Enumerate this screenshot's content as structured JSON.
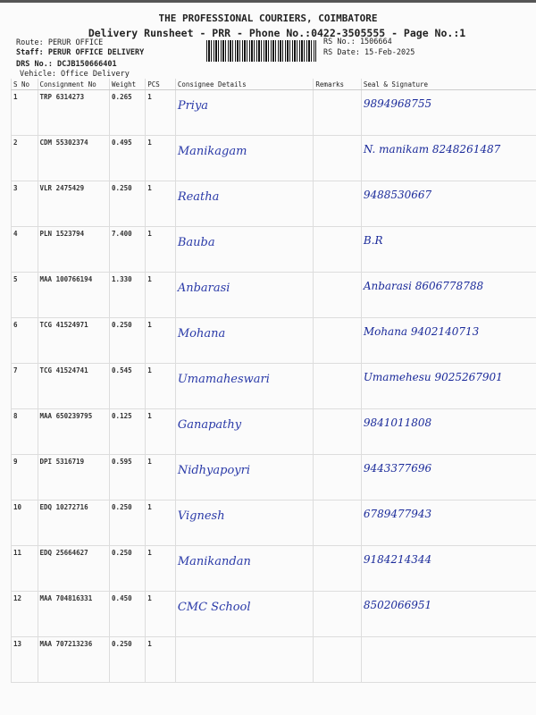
{
  "header": {
    "title": "THE PROFESSIONAL COURIERS, COIMBATORE",
    "subtitle": "Delivery Runsheet - PRR - Phone No.:0422-3505555 - Page No.:1",
    "route": "Route: PERUR OFFICE",
    "staff": "Staff: PERUR OFFICE DELIVERY",
    "drs": "DRS No.: DCJB150666401",
    "vehicle": "Vehicle: Office Delivery",
    "rs_no": "RS No.: 1506664",
    "rs_date": "RS Date: 15-Feb-2025"
  },
  "table": {
    "columns": [
      "S No",
      "Consignment No",
      "Weight",
      "PCS",
      "Consignee Details",
      "Remarks",
      "Seal & Signature"
    ],
    "rows": [
      {
        "sno": "1",
        "cn": "TRP 6314273",
        "wt": "0.265",
        "pcs": "1",
        "consignee": "Priya",
        "sig": "9894968755"
      },
      {
        "sno": "2",
        "cn": "CDM 55302374",
        "wt": "0.495",
        "pcs": "1",
        "consignee": "Manikagam",
        "sig": "N. manikam 8248261487"
      },
      {
        "sno": "3",
        "cn": "VLR 2475429",
        "wt": "0.250",
        "pcs": "1",
        "consignee": "Reatha",
        "sig": "9488530667"
      },
      {
        "sno": "4",
        "cn": "PLN 1523794",
        "wt": "7.400",
        "pcs": "1",
        "consignee": "Bauba",
        "sig": "B.R"
      },
      {
        "sno": "5",
        "cn": "MAA 100766194",
        "wt": "1.330",
        "pcs": "1",
        "consignee": "Anbarasi",
        "sig": "Anbarasi 8606778788"
      },
      {
        "sno": "6",
        "cn": "TCG 41524971",
        "wt": "0.250",
        "pcs": "1",
        "consignee": "Mohana",
        "sig": "Mohana 9402140713"
      },
      {
        "sno": "7",
        "cn": "TCG 41524741",
        "wt": "0.545",
        "pcs": "1",
        "consignee": "Umamaheswari",
        "sig": "Umamehesu 9025267901"
      },
      {
        "sno": "8",
        "cn": "MAA 650239795",
        "wt": "0.125",
        "pcs": "1",
        "consignee": "Ganapathy",
        "sig": "9841011808"
      },
      {
        "sno": "9",
        "cn": "DPI 5316719",
        "wt": "0.595",
        "pcs": "1",
        "consignee": "Nidhyapoyri",
        "sig": "9443377696"
      },
      {
        "sno": "10",
        "cn": "EDQ 10272716",
        "wt": "0.250",
        "pcs": "1",
        "consignee": "Vignesh",
        "sig": "6789477943"
      },
      {
        "sno": "11",
        "cn": "EDQ 25664627",
        "wt": "0.250",
        "pcs": "1",
        "consignee": "Manikandan",
        "sig": "9184214344"
      },
      {
        "sno": "12",
        "cn": "MAA 704816331",
        "wt": "0.450",
        "pcs": "1",
        "consignee": "CMC School",
        "sig": "8502066951"
      },
      {
        "sno": "13",
        "cn": "MAA 707213236",
        "wt": "0.250",
        "pcs": "1",
        "consignee": "",
        "sig": ""
      }
    ]
  },
  "stamp_text": "PERUR OFFICE"
}
